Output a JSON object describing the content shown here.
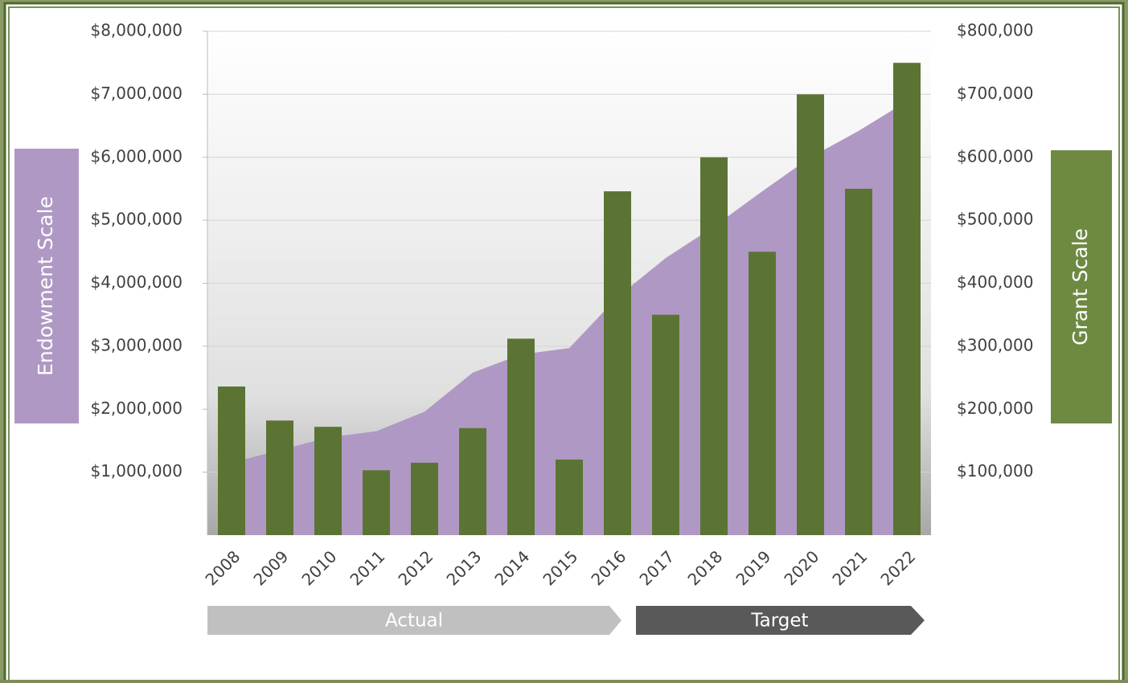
{
  "chart_data": {
    "type": "combo",
    "categories": [
      "2008",
      "2009",
      "2010",
      "2011",
      "2012",
      "2013",
      "2014",
      "2015",
      "2016",
      "2017",
      "2018",
      "2019",
      "2020",
      "2021",
      "2022"
    ],
    "series": [
      {
        "type": "area",
        "axis": "y",
        "color": "#b098c4",
        "values": [
          1150000,
          1350000,
          1550000,
          1650000,
          1960000,
          2580000,
          2870000,
          2970000,
          3780000,
          4400000,
          4900000,
          5460000,
          6000000,
          6420000,
          6890000
        ]
      },
      {
        "type": "bar",
        "axis": "y2",
        "color": "#5b7433",
        "values": [
          236000,
          182000,
          172000,
          103000,
          115000,
          170000,
          312000,
          120000,
          546000,
          350000,
          600000,
          450000,
          700000,
          550000,
          750000
        ]
      }
    ],
    "ylabel": "Endowment  Scale",
    "y2label": "Grant Scale",
    "ylim": [
      0,
      8000000
    ],
    "yticks": [
      {
        "value": 1000000,
        "label": "$1,000,000"
      },
      {
        "value": 2000000,
        "label": "$2,000,000"
      },
      {
        "value": 3000000,
        "label": "$3,000,000"
      },
      {
        "value": 4000000,
        "label": "$4,000,000"
      },
      {
        "value": 5000000,
        "label": "$5,000,000"
      },
      {
        "value": 6000000,
        "label": "$6,000,000"
      },
      {
        "value": 7000000,
        "label": "$7,000,000"
      },
      {
        "value": 8000000,
        "label": "$8,000,000"
      }
    ],
    "y2lim": [
      0,
      800000
    ],
    "y2ticks": [
      {
        "value": 100000,
        "label": "$100,000"
      },
      {
        "value": 200000,
        "label": "$200,000"
      },
      {
        "value": 300000,
        "label": "$300,000"
      },
      {
        "value": 400000,
        "label": "$400,000"
      },
      {
        "value": 500000,
        "label": "$500,000"
      },
      {
        "value": 600000,
        "label": "$600,000"
      },
      {
        "value": 700000,
        "label": "$700,000"
      },
      {
        "value": 800000,
        "label": "$800,000"
      }
    ],
    "grid": true,
    "annotations": [
      "Actual",
      "Target"
    ]
  }
}
